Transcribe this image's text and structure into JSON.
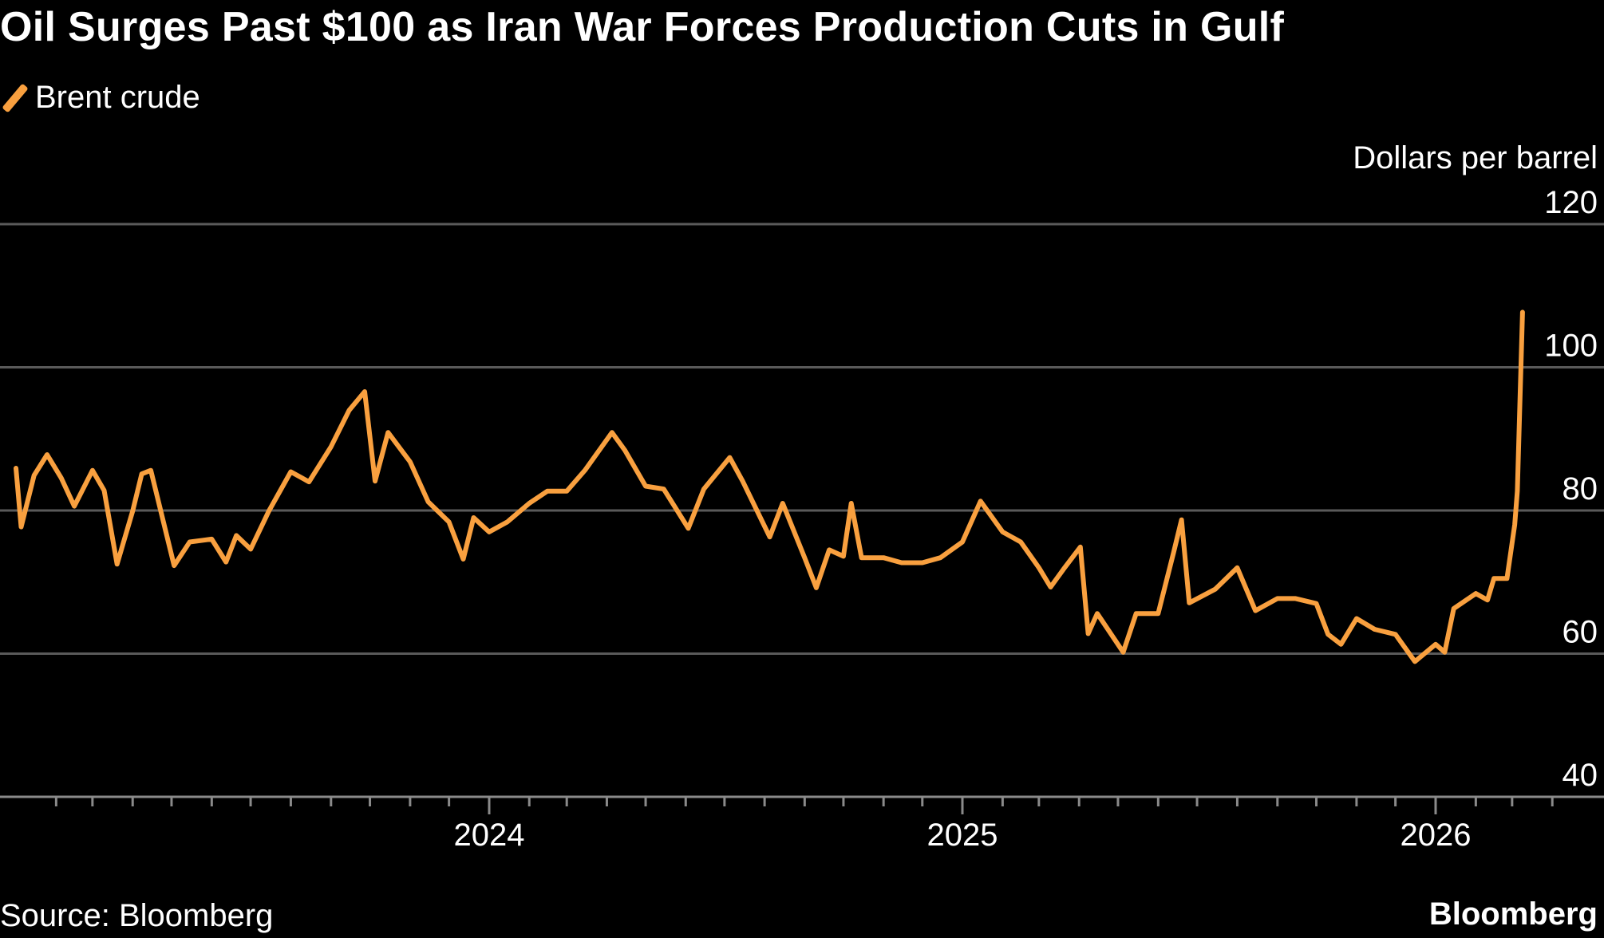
{
  "chart_data": {
    "type": "line",
    "title": "Oil Surges Past $100 as Iran War Forces Production Cuts in Gulf",
    "ylabel": "Dollars per barrel",
    "xlabel": "",
    "ylim": [
      40,
      120
    ],
    "yticks": [
      "120",
      "100",
      "80",
      "60",
      "40"
    ],
    "xticks": [
      "2024",
      "2025",
      "2026"
    ],
    "grid": "horizontal",
    "legend_position": "top-left",
    "source": "Source: Bloomberg",
    "brand": "Bloomberg",
    "series": [
      {
        "name": "Brent crude",
        "color": "#f9a03f",
        "points": [
          [
            "2023-01-01",
            85.9
          ],
          [
            "2023-01-05",
            77.7
          ],
          [
            "2023-01-15",
            84.9
          ],
          [
            "2023-01-25",
            87.8
          ],
          [
            "2023-02-05",
            84.5
          ],
          [
            "2023-02-15",
            80.6
          ],
          [
            "2023-03-01",
            85.6
          ],
          [
            "2023-03-10",
            82.8
          ],
          [
            "2023-03-20",
            72.5
          ],
          [
            "2023-04-01",
            79.9
          ],
          [
            "2023-04-08",
            85.1
          ],
          [
            "2023-04-15",
            85.6
          ],
          [
            "2023-05-03",
            72.3
          ],
          [
            "2023-05-15",
            75.6
          ],
          [
            "2023-06-01",
            76.0
          ],
          [
            "2023-06-12",
            72.8
          ],
          [
            "2023-06-20",
            76.5
          ],
          [
            "2023-07-01",
            74.6
          ],
          [
            "2023-07-15",
            79.9
          ],
          [
            "2023-08-01",
            85.4
          ],
          [
            "2023-08-15",
            84.0
          ],
          [
            "2023-09-01",
            88.9
          ],
          [
            "2023-09-15",
            94.0
          ],
          [
            "2023-09-27",
            96.6
          ],
          [
            "2023-10-05",
            84.1
          ],
          [
            "2023-10-15",
            90.9
          ],
          [
            "2023-11-01",
            86.8
          ],
          [
            "2023-11-15",
            81.2
          ],
          [
            "2023-12-01",
            78.4
          ],
          [
            "2023-12-12",
            73.2
          ],
          [
            "2023-12-20",
            79.0
          ],
          [
            "2024-01-01",
            77.0
          ],
          [
            "2024-01-15",
            78.4
          ],
          [
            "2024-02-01",
            81.0
          ],
          [
            "2024-02-15",
            82.7
          ],
          [
            "2024-03-01",
            82.7
          ],
          [
            "2024-03-15",
            85.6
          ],
          [
            "2024-04-05",
            90.9
          ],
          [
            "2024-04-15",
            88.4
          ],
          [
            "2024-05-01",
            83.4
          ],
          [
            "2024-05-15",
            83.0
          ],
          [
            "2024-06-03",
            77.5
          ],
          [
            "2024-06-15",
            83.0
          ],
          [
            "2024-07-05",
            87.4
          ],
          [
            "2024-07-15",
            84.1
          ],
          [
            "2024-08-05",
            76.3
          ],
          [
            "2024-08-15",
            81.0
          ],
          [
            "2024-09-01",
            73.4
          ],
          [
            "2024-09-10",
            69.2
          ],
          [
            "2024-09-20",
            74.5
          ],
          [
            "2024-10-01",
            73.6
          ],
          [
            "2024-10-07",
            81.0
          ],
          [
            "2024-10-15",
            73.4
          ],
          [
            "2024-11-01",
            73.4
          ],
          [
            "2024-11-15",
            72.7
          ],
          [
            "2024-12-01",
            72.7
          ],
          [
            "2024-12-15",
            73.4
          ],
          [
            "2025-01-01",
            75.6
          ],
          [
            "2025-01-15",
            81.3
          ],
          [
            "2025-02-01",
            77.0
          ],
          [
            "2025-02-15",
            75.6
          ],
          [
            "2025-03-01",
            72.0
          ],
          [
            "2025-03-10",
            69.3
          ],
          [
            "2025-03-20",
            71.8
          ],
          [
            "2025-04-02",
            74.9
          ],
          [
            "2025-04-08",
            62.8
          ],
          [
            "2025-04-15",
            65.6
          ],
          [
            "2025-05-05",
            60.2
          ],
          [
            "2025-05-15",
            65.6
          ],
          [
            "2025-06-01",
            65.6
          ],
          [
            "2025-06-13",
            74.2
          ],
          [
            "2025-06-19",
            78.7
          ],
          [
            "2025-06-25",
            67.1
          ],
          [
            "2025-07-15",
            69.0
          ],
          [
            "2025-08-01",
            72.0
          ],
          [
            "2025-08-15",
            66.0
          ],
          [
            "2025-09-01",
            67.7
          ],
          [
            "2025-09-15",
            67.7
          ],
          [
            "2025-10-01",
            67.0
          ],
          [
            "2025-10-10",
            62.7
          ],
          [
            "2025-10-20",
            61.3
          ],
          [
            "2025-11-01",
            64.9
          ],
          [
            "2025-11-15",
            63.4
          ],
          [
            "2025-12-01",
            62.7
          ],
          [
            "2025-12-16",
            58.9
          ],
          [
            "2026-01-01",
            61.3
          ],
          [
            "2026-01-08",
            60.2
          ],
          [
            "2026-01-15",
            66.3
          ],
          [
            "2026-02-01",
            68.4
          ],
          [
            "2026-02-10",
            67.5
          ],
          [
            "2026-02-15",
            70.5
          ],
          [
            "2026-02-25",
            70.5
          ],
          [
            "2026-03-03",
            78.0
          ],
          [
            "2026-03-05",
            82.7
          ],
          [
            "2026-03-09",
            107.7
          ]
        ]
      }
    ]
  }
}
